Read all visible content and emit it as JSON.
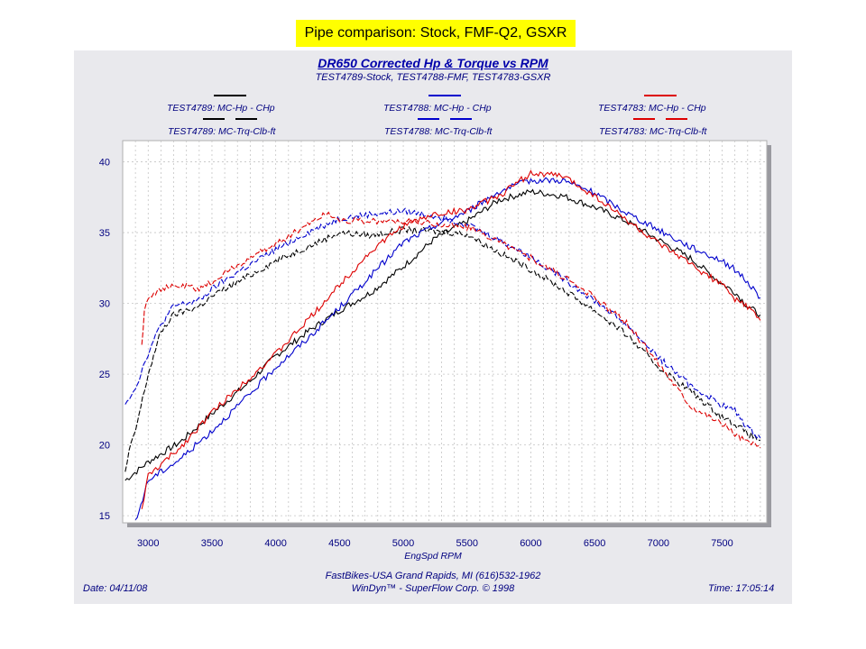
{
  "banner": "Pipe comparison: Stock, FMF-Q2, GSXR",
  "footer": {
    "date": "Date: 04/11/08",
    "line1": "FastBikes-USA Grand Rapids, MI (616)532-1962",
    "line2": "WinDyn™ - SuperFlow Corp. © 1998",
    "time": "Time: 17:05:14"
  },
  "colors": {
    "stock": "#000000",
    "fmf": "#0000cc",
    "gsxr": "#dd0000",
    "axis_text": "#000080"
  },
  "chart_data": {
    "type": "line",
    "title": "DR650 Corrected Hp & Torque vs RPM",
    "subtitle": "TEST4789-Stock, TEST4788-FMF, TEST4783-GSXR",
    "xlabel": "EngSpd  RPM",
    "ylabel": "",
    "xlim": [
      2800,
      7850
    ],
    "ylim": [
      14.5,
      41.5
    ],
    "xticks": [
      3000,
      3500,
      4000,
      4500,
      5000,
      5500,
      6000,
      6500,
      7000,
      7500
    ],
    "yticks": [
      15,
      20,
      25,
      30,
      35,
      40
    ],
    "grid": true,
    "legend_position": "top",
    "series": [
      {
        "name": "TEST4789: MC-Hp - CHp",
        "color": "#000000",
        "dash": "solid",
        "legend_col": 0,
        "legend_row": 0,
        "x": [
          2820,
          3000,
          3250,
          3500,
          3800,
          4000,
          4250,
          4500,
          4750,
          5000,
          5250,
          5500,
          5750,
          6000,
          6250,
          6500,
          6750,
          7000,
          7250,
          7500,
          7600,
          7700,
          7800
        ],
        "y": [
          17.5,
          18.8,
          20.2,
          22.2,
          24.5,
          26.3,
          28.0,
          29.5,
          30.8,
          32.6,
          34.6,
          35.8,
          37.3,
          37.9,
          37.6,
          36.8,
          35.8,
          34.5,
          33.2,
          31.4,
          30.8,
          29.8,
          29.2
        ]
      },
      {
        "name": "TEST4789: MC-Trq-Clb-ft",
        "color": "#000000",
        "dash": "dashed",
        "legend_col": 0,
        "legend_row": 1,
        "x": [
          2820,
          2850,
          2900,
          3000,
          3100,
          3200,
          3300,
          3400,
          3500,
          3700,
          4000,
          4250,
          4500,
          4750,
          5000,
          5250,
          5500,
          5750,
          6000,
          6250,
          6500,
          6750,
          7000,
          7250,
          7500,
          7600,
          7700,
          7800
        ],
        "y": [
          18.0,
          19.5,
          21.0,
          25.0,
          28.0,
          29.2,
          29.5,
          29.8,
          30.5,
          31.5,
          33.0,
          34.0,
          35.0,
          34.8,
          35.2,
          35.1,
          34.9,
          33.6,
          32.4,
          31.0,
          29.5,
          27.8,
          25.5,
          23.8,
          22.0,
          21.5,
          20.8,
          20.3
        ]
      },
      {
        "name": "TEST4788: MC-Hp - CHp",
        "color": "#0000cc",
        "dash": "solid",
        "legend_col": 1,
        "legend_row": 0,
        "x": [
          2900,
          3000,
          3250,
          3500,
          3800,
          4000,
          4250,
          4500,
          4750,
          5000,
          5250,
          5500,
          5750,
          6000,
          6250,
          6500,
          6750,
          7000,
          7250,
          7500,
          7600,
          7700,
          7800
        ],
        "y": [
          14.5,
          17.5,
          19.0,
          21.0,
          23.6,
          25.5,
          27.5,
          29.7,
          32.0,
          34.3,
          35.5,
          36.5,
          37.9,
          38.7,
          38.7,
          37.8,
          36.4,
          35.2,
          34.0,
          33.0,
          32.4,
          31.5,
          30.4
        ]
      },
      {
        "name": "TEST4788: MC-Trq-Clb-ft",
        "color": "#0000cc",
        "dash": "dashed",
        "legend_col": 1,
        "legend_row": 1,
        "x": [
          2820,
          2900,
          3000,
          3100,
          3200,
          3300,
          3400,
          3500,
          3700,
          4000,
          4250,
          4500,
          4750,
          5000,
          5250,
          5500,
          5750,
          6000,
          6250,
          6500,
          6750,
          7000,
          7250,
          7500,
          7600,
          7700,
          7800
        ],
        "y": [
          23.0,
          24.0,
          26.5,
          28.5,
          29.8,
          30.0,
          30.2,
          31.0,
          32.2,
          33.8,
          35.0,
          36.0,
          36.3,
          36.5,
          36.2,
          35.6,
          34.5,
          33.3,
          31.8,
          30.2,
          28.5,
          26.2,
          24.2,
          22.8,
          22.4,
          21.2,
          20.5
        ]
      },
      {
        "name": "TEST4783: MC-Hp - CHp",
        "color": "#dd0000",
        "dash": "solid",
        "legend_col": 2,
        "legend_row": 0,
        "x": [
          2950,
          3000,
          3250,
          3500,
          3800,
          4000,
          4250,
          4500,
          4750,
          5000,
          5250,
          5500,
          5750,
          6000,
          6250,
          6500,
          6750,
          7000,
          7250,
          7500,
          7600,
          7700,
          7800
        ],
        "y": [
          15.5,
          17.8,
          19.8,
          22.3,
          24.8,
          26.4,
          28.8,
          31.3,
          33.7,
          35.5,
          36.3,
          36.6,
          37.6,
          39.2,
          39.0,
          37.6,
          35.9,
          34.2,
          32.8,
          31.3,
          30.3,
          29.8,
          28.8
        ]
      },
      {
        "name": "TEST4783: MC-Trq-Clb-ft",
        "color": "#dd0000",
        "dash": "dashed",
        "legend_col": 2,
        "legend_row": 1,
        "x": [
          2950,
          2970,
          3000,
          3100,
          3200,
          3300,
          3400,
          3500,
          3700,
          4000,
          4250,
          4400,
          4500,
          4750,
          5000,
          5250,
          5500,
          5750,
          6000,
          6250,
          6500,
          6750,
          7000,
          7250,
          7500,
          7600,
          7700,
          7800
        ],
        "y": [
          27.0,
          29.5,
          30.5,
          31.0,
          31.2,
          31.2,
          31.0,
          31.5,
          32.7,
          34.2,
          35.6,
          36.4,
          35.9,
          35.8,
          35.8,
          35.6,
          35.4,
          34.4,
          33.2,
          31.9,
          30.4,
          28.6,
          25.8,
          22.8,
          21.5,
          20.8,
          20.2,
          19.8
        ]
      }
    ]
  }
}
